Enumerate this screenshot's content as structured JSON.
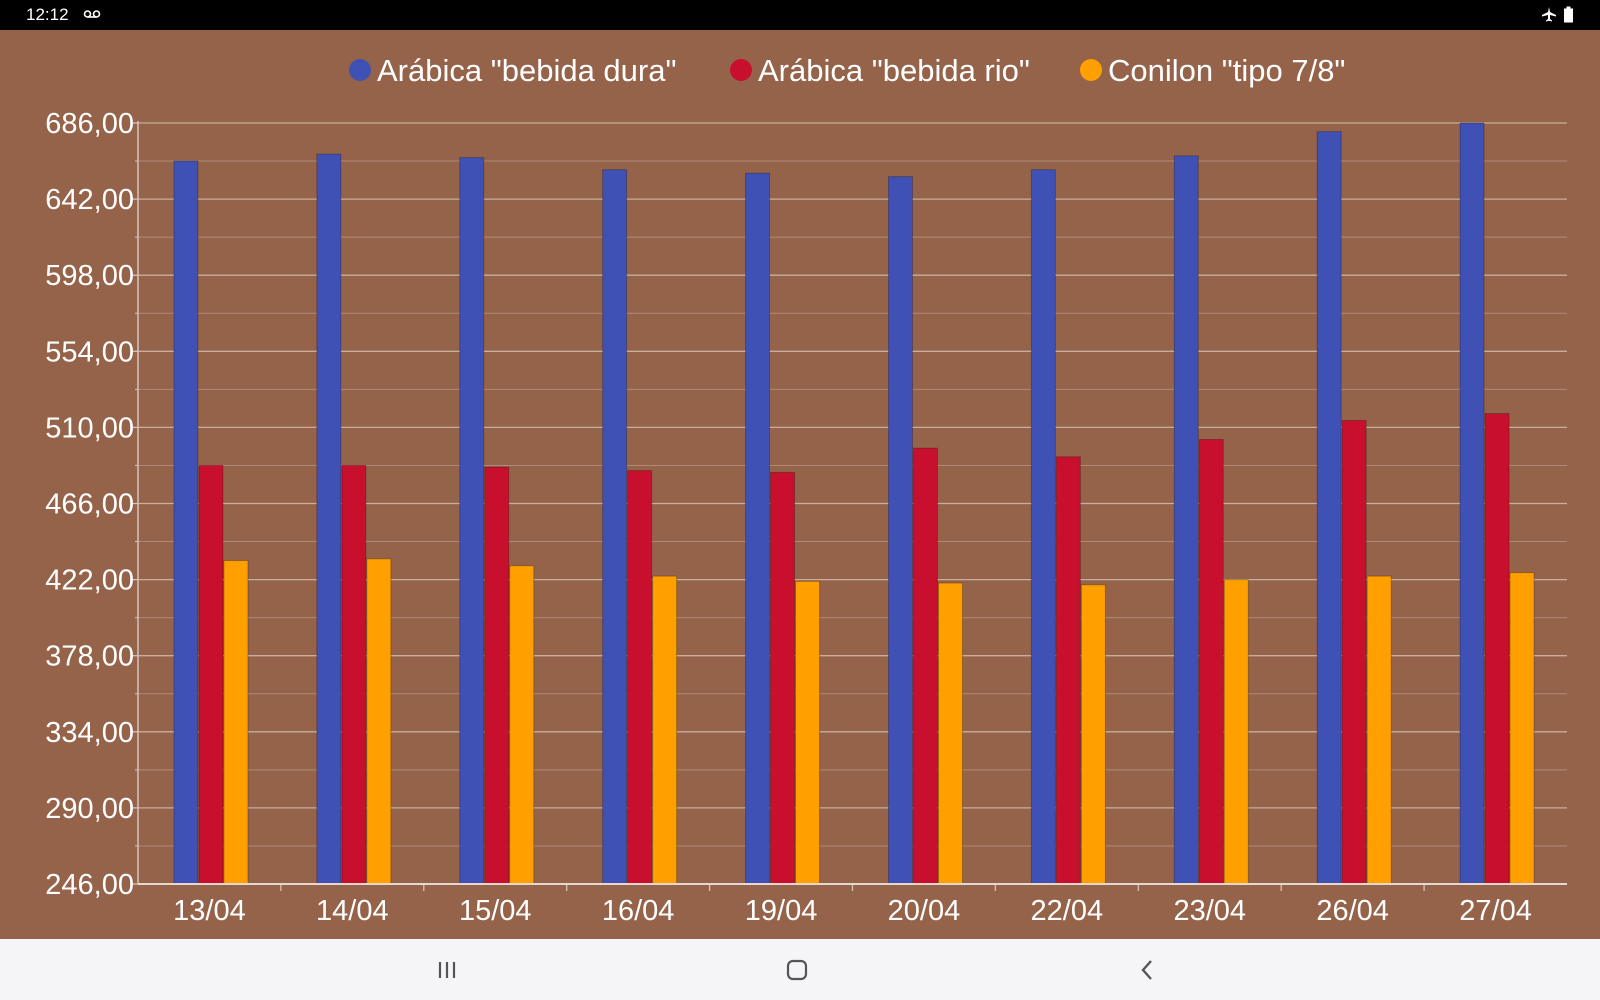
{
  "status_bar": {
    "time": "12:12"
  },
  "chart_data": {
    "type": "bar",
    "categories": [
      "13/04",
      "14/04",
      "15/04",
      "16/04",
      "19/04",
      "20/04",
      "22/04",
      "23/04",
      "26/04",
      "27/04"
    ],
    "series": [
      {
        "name": "Arábica \"bebida dura\"",
        "color": "#3f51b5",
        "values": [
          664,
          668,
          666,
          659,
          657,
          655,
          659,
          667,
          681,
          686
        ]
      },
      {
        "name": "Arábica \"bebida rio\"",
        "color": "#c8102e",
        "values": [
          488,
          488,
          487,
          485,
          484,
          498,
          493,
          503,
          514,
          518
        ]
      },
      {
        "name": "Conilon \"tipo 7/8\"",
        "color": "#ffa000",
        "values": [
          433,
          434,
          430,
          424,
          421,
          420,
          419,
          422,
          424,
          426
        ]
      }
    ],
    "ylim": [
      246,
      686
    ],
    "yticks": [
      "246,00",
      "290,00",
      "334,00",
      "378,00",
      "422,00",
      "466,00",
      "510,00",
      "554,00",
      "598,00",
      "642,00",
      "686,00"
    ],
    "legend_position": "top-center",
    "grid": true,
    "background": "#95634a"
  },
  "nav_bar": {
    "icons": [
      "recents-icon",
      "home-icon",
      "back-icon"
    ]
  }
}
